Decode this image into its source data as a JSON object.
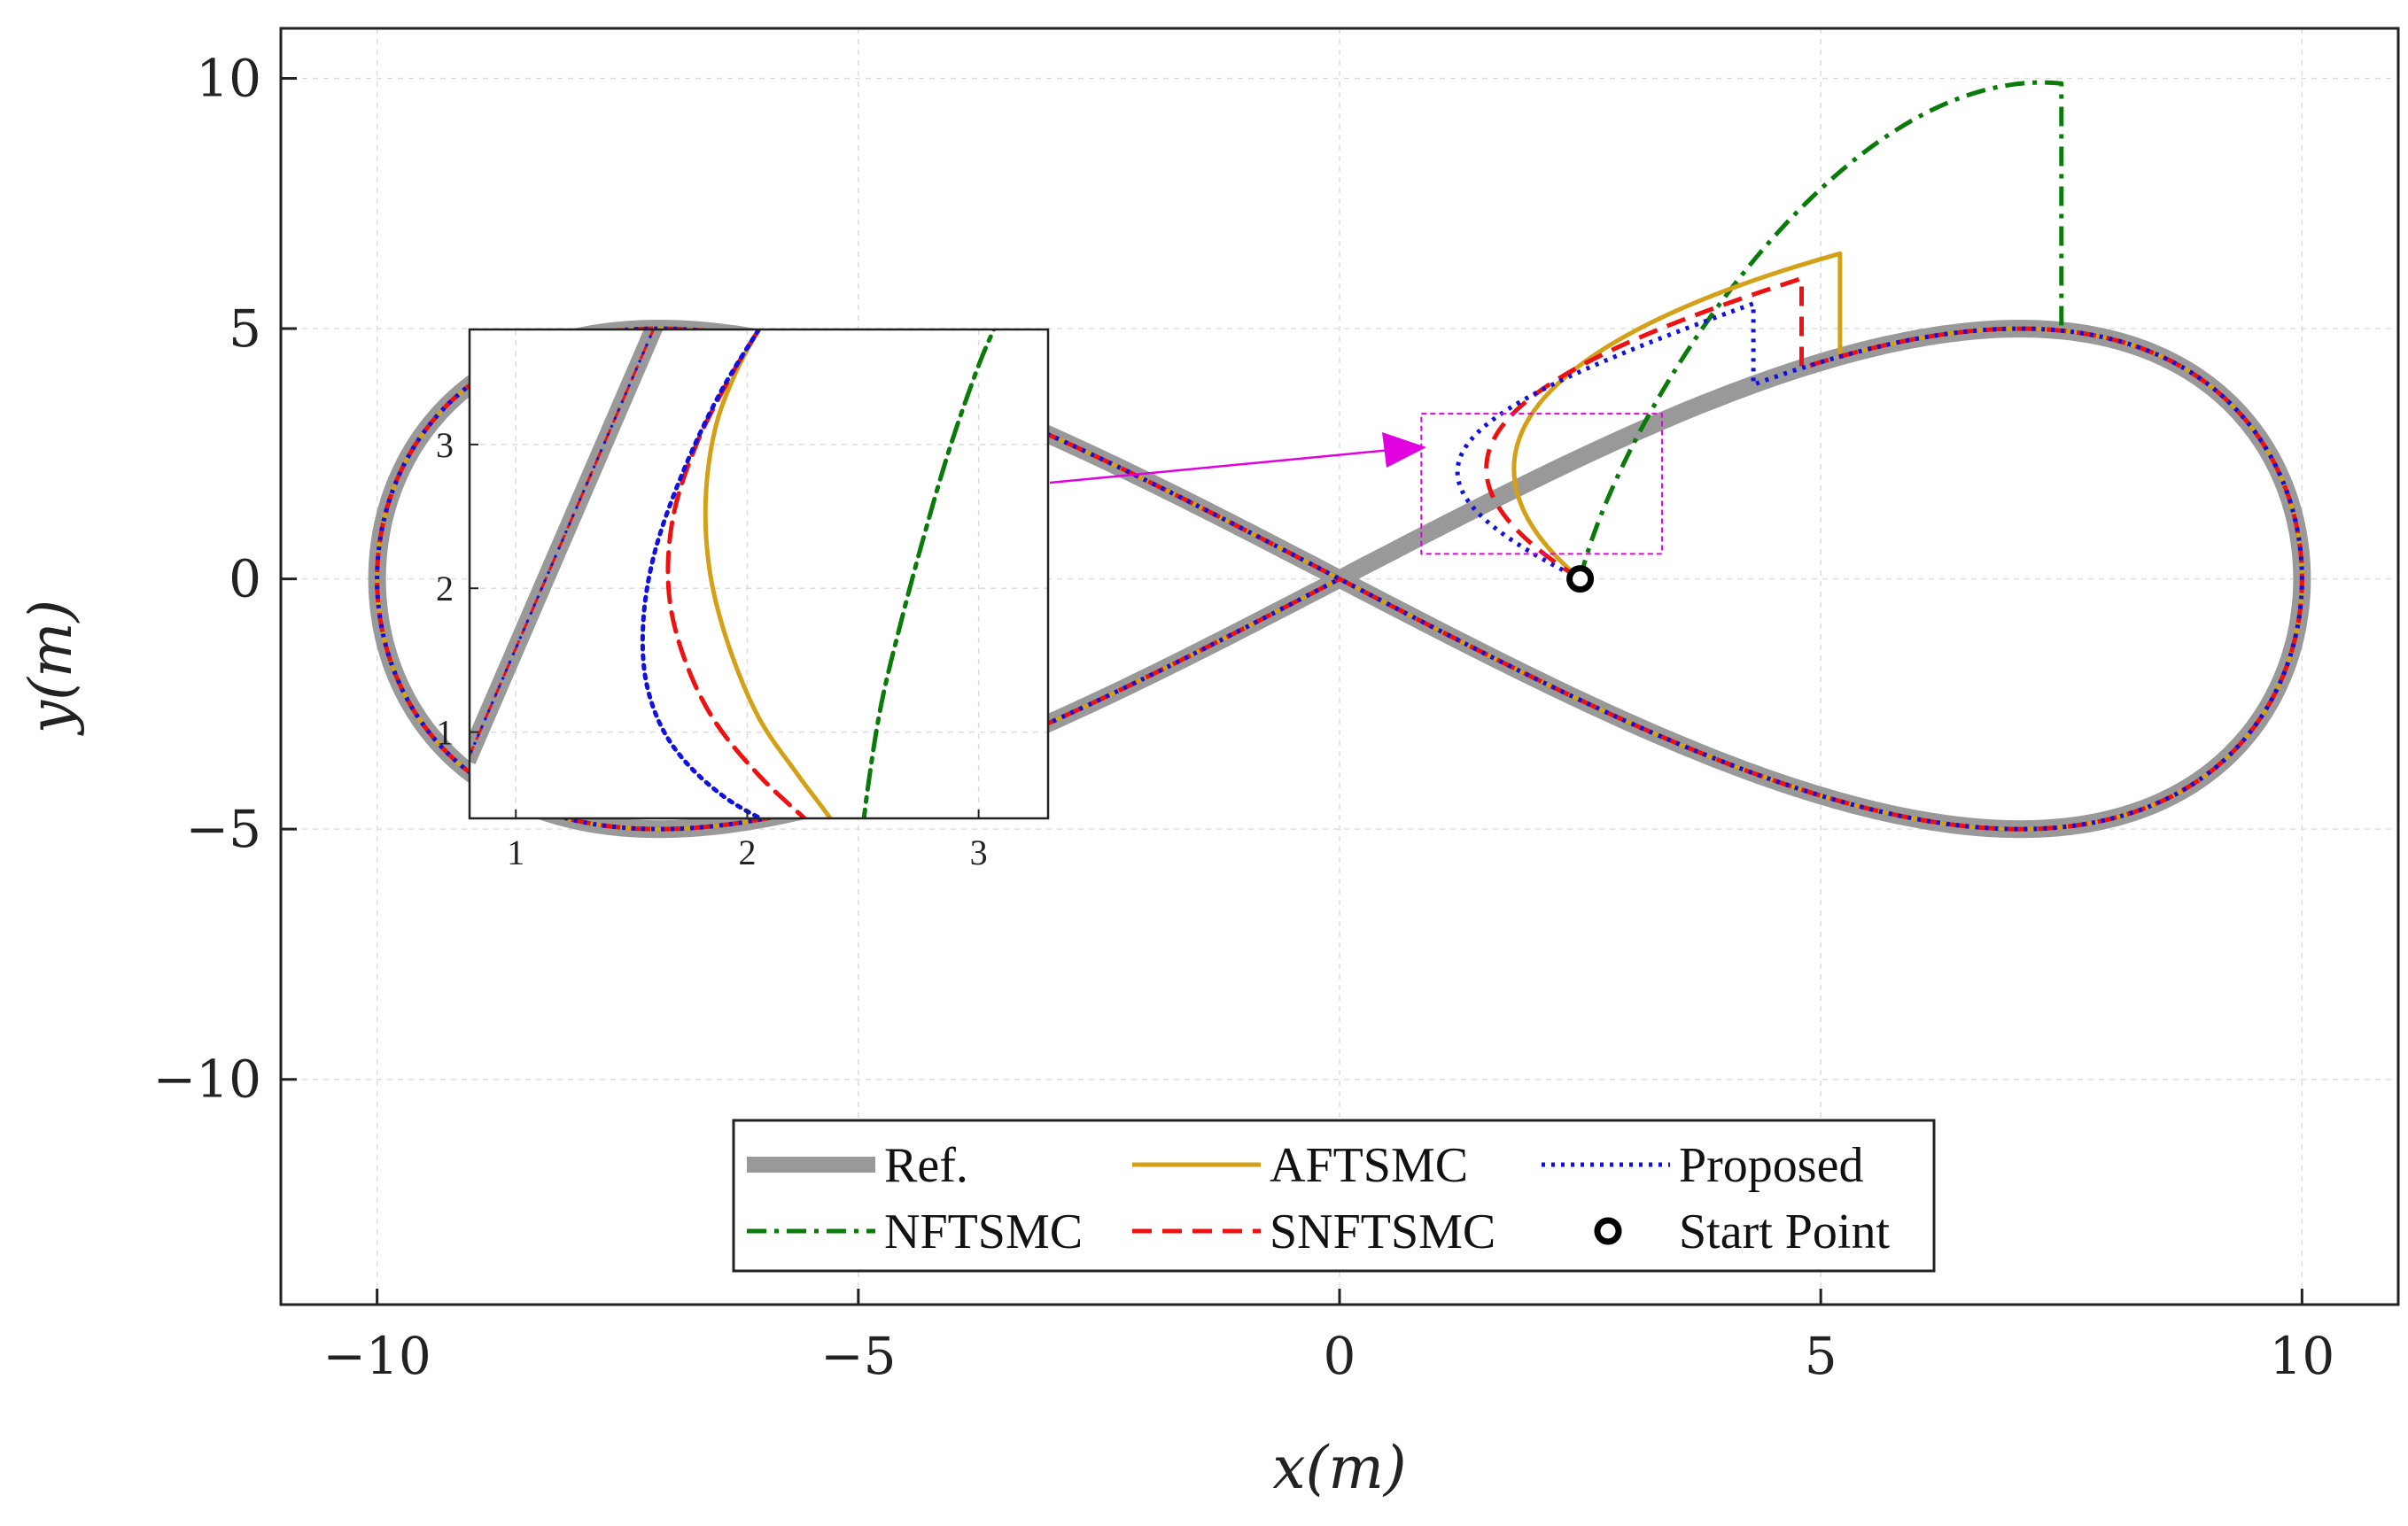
{
  "chart_data": {
    "type": "line",
    "title": "",
    "xlabel": "x(m)",
    "ylabel": "y(m)",
    "xlim": [
      -11,
      11
    ],
    "ylim": [
      -14.5,
      11
    ],
    "xticks": [
      -10,
      -5,
      0,
      5,
      10
    ],
    "yticks": [
      -10,
      -5,
      0,
      5,
      10
    ],
    "xtick_labels": [
      "−10",
      "−5",
      "0",
      "5",
      "10"
    ],
    "ytick_labels": [
      "−10",
      "−5",
      "0",
      "5",
      "10"
    ],
    "grid": true,
    "reference_path": "figure-eight: x = 10·sin(t), y = 10·sin(t)·cos(t)",
    "series": [
      {
        "key": "ref",
        "name": "Ref.",
        "color": "#999999",
        "style": "solid",
        "role": "reference"
      },
      {
        "key": "aftsmc",
        "name": "AFTSMC",
        "color": "#D4A017",
        "style": "solid",
        "start": [
          2.5,
          0.0
        ],
        "join": [
          5.2,
          6.5
        ],
        "inset_x": [
          2.48,
          2.38,
          2.22,
          2.05,
          1.92,
          1.84,
          1.82,
          1.86,
          1.95,
          2.05
        ],
        "inset_y": [
          0.05,
          0.35,
          0.7,
          1.1,
          1.6,
          2.1,
          2.6,
          3.1,
          3.5,
          3.8
        ]
      },
      {
        "key": "proposed",
        "name": "Proposed",
        "color": "#1010E0",
        "style": "dotted",
        "start": [
          2.5,
          0.0
        ],
        "join": [
          4.3,
          5.5
        ],
        "inset_x": [
          2.45,
          2.2,
          1.9,
          1.68,
          1.57,
          1.55,
          1.6,
          1.72,
          1.88,
          2.05
        ],
        "inset_y": [
          0.05,
          0.28,
          0.55,
          0.9,
          1.3,
          1.75,
          2.25,
          2.8,
          3.35,
          3.8
        ]
      },
      {
        "key": "nftsmc",
        "name": "NFTSMC",
        "color": "#0A7A0A",
        "style": "dashdot",
        "start": [
          2.5,
          0.0
        ],
        "join": [
          7.5,
          9.9
        ],
        "inset_x": [
          2.48,
          2.52,
          2.58,
          2.67,
          2.77,
          2.88,
          3.0,
          3.08
        ],
        "inset_y": [
          0.05,
          0.6,
          1.2,
          1.8,
          2.4,
          3.0,
          3.55,
          3.85
        ]
      },
      {
        "key": "snftsmc",
        "name": "SNFTSMC",
        "color": "#EE1111",
        "style": "dashed",
        "start": [
          2.5,
          0.0
        ],
        "join": [
          4.8,
          6.0
        ],
        "inset_x": [
          2.46,
          2.28,
          2.05,
          1.85,
          1.72,
          1.66,
          1.68,
          1.78,
          1.92,
          2.05
        ],
        "inset_y": [
          0.05,
          0.35,
          0.7,
          1.1,
          1.55,
          2.0,
          2.5,
          3.0,
          3.45,
          3.8
        ]
      }
    ],
    "start_point": {
      "label": "Start Point",
      "x": 2.5,
      "y": 0.0
    },
    "inset": {
      "xlim": [
        0.8,
        3.3
      ],
      "ylim": [
        0.4,
        3.8
      ],
      "xticks": [
        1,
        2,
        3
      ],
      "yticks": [
        1,
        2,
        3
      ],
      "xtick_labels": [
        "1",
        "2",
        "3"
      ],
      "ytick_labels": [
        "1",
        "2",
        "3"
      ]
    },
    "legend": {
      "position": "bottom-center",
      "entries": [
        "Ref.",
        "AFTSMC",
        "Proposed",
        "NFTSMC",
        "SNFTSMC",
        "Start Point"
      ]
    }
  },
  "colors": {
    "zoom_box": "#E000E0",
    "grid": "#DDDDDD",
    "axes": "#222222"
  }
}
